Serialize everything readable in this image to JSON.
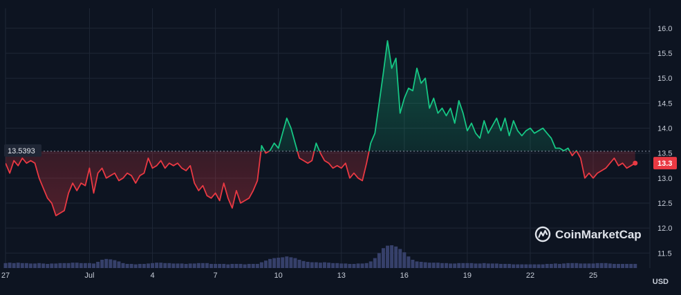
{
  "brand": {
    "name": "CoinMarketCap",
    "icon": "coinmarketcap-logo-icon"
  },
  "currency_label": "USD",
  "reference_price_label": "13.5393",
  "last_price_label": "13.3",
  "colors": {
    "background": "#0d1421",
    "grid": "#1f2736",
    "above_reference": "#16c784",
    "below_reference": "#ea3943",
    "volume": "#36406a",
    "reference_line": "#8a94a6"
  },
  "chart_data": {
    "type": "line",
    "title": "",
    "xlabel": "",
    "ylabel": "USD",
    "ylim": [
      11.2,
      16.4
    ],
    "yticks": [
      11.5,
      12.0,
      12.5,
      13.0,
      13.5,
      14.0,
      14.5,
      15.0,
      15.5,
      16.0
    ],
    "ytick_labels": [
      "11.5",
      "12.0",
      "12.5",
      "13.0",
      "13.5",
      "14.0",
      "14.5",
      "15.0",
      "15.5",
      "16.0"
    ],
    "xlim": [
      0,
      30.7
    ],
    "xticks": [
      0,
      4,
      7,
      10,
      13,
      16,
      19,
      22,
      25,
      28
    ],
    "xtick_labels": [
      "27",
      "Jul",
      "4",
      "7",
      "10",
      "13",
      "16",
      "19",
      "22",
      "25"
    ],
    "reference_value": 13.5393,
    "last_value": 13.3,
    "grid": true,
    "series": [
      {
        "x": [
          0,
          0.2,
          0.4,
          0.6,
          0.8,
          1.0,
          1.2,
          1.4,
          1.6,
          1.8,
          2.0,
          2.2,
          2.4,
          2.6,
          2.8,
          3.0,
          3.2,
          3.4,
          3.6,
          3.8,
          4.0,
          4.2,
          4.4,
          4.6,
          4.8,
          5.0,
          5.2,
          5.4,
          5.6,
          5.8,
          6.0,
          6.2,
          6.4,
          6.6,
          6.8,
          7.0,
          7.2,
          7.4,
          7.6,
          7.8,
          8.0,
          8.2,
          8.4,
          8.6,
          8.8,
          9.0,
          9.2,
          9.4,
          9.6,
          9.8,
          10.0,
          10.2,
          10.4,
          10.6,
          10.8,
          11.0,
          11.2,
          11.4,
          11.6,
          11.8,
          12.0,
          12.2,
          12.4,
          12.6,
          12.8,
          13.0,
          13.2,
          13.4,
          13.6,
          13.8,
          14.0,
          14.2,
          14.4,
          14.6,
          14.8,
          15.0,
          15.2,
          15.4,
          15.6,
          15.8,
          16.0,
          16.2,
          16.4,
          16.6,
          16.8,
          17.0,
          17.2,
          17.4,
          17.6,
          17.8,
          18.0,
          18.2,
          18.4,
          18.6,
          18.8,
          19.0,
          19.2,
          19.4,
          19.6,
          19.8,
          20.0,
          20.2,
          20.4,
          20.6,
          20.8,
          21.0,
          21.2,
          21.4,
          21.6,
          21.8,
          22.0,
          22.2,
          22.4,
          22.6,
          22.8,
          23.0,
          23.2,
          23.4,
          23.6,
          23.8,
          24.0,
          24.2,
          24.4,
          24.6,
          24.8,
          25.0,
          25.2,
          25.4,
          25.6,
          25.8,
          26.0,
          26.2,
          26.4,
          26.6,
          26.8,
          27.0,
          27.2,
          27.4,
          27.6,
          27.8,
          28.0,
          28.2,
          28.4,
          28.6,
          28.8,
          29.0,
          29.2,
          29.4,
          29.6,
          29.8,
          30.0
        ],
        "values": [
          13.3,
          13.1,
          13.35,
          13.25,
          13.4,
          13.3,
          13.35,
          13.3,
          13.0,
          12.8,
          12.6,
          12.5,
          12.25,
          12.3,
          12.35,
          12.7,
          12.9,
          12.75,
          12.9,
          12.85,
          13.2,
          12.7,
          13.1,
          13.2,
          13.0,
          13.05,
          13.1,
          12.95,
          13.0,
          13.1,
          13.05,
          12.9,
          13.05,
          13.1,
          13.4,
          13.2,
          13.25,
          13.35,
          13.2,
          13.3,
          13.25,
          13.3,
          13.2,
          13.15,
          13.25,
          12.9,
          12.75,
          12.85,
          12.65,
          12.6,
          12.7,
          12.55,
          12.9,
          12.6,
          12.4,
          12.75,
          12.5,
          12.55,
          12.6,
          12.75,
          12.95,
          13.65,
          13.5,
          13.55,
          13.7,
          13.6,
          13.9,
          14.2,
          14.0,
          13.7,
          13.4,
          13.35,
          13.3,
          13.35,
          13.7,
          13.5,
          13.35,
          13.3,
          13.2,
          13.25,
          13.2,
          13.3,
          13.0,
          13.1,
          13.0,
          12.95,
          13.3,
          13.7,
          13.9,
          14.5,
          15.1,
          15.75,
          15.2,
          15.4,
          14.3,
          14.6,
          14.8,
          14.75,
          15.2,
          14.9,
          15.0,
          14.4,
          14.6,
          14.3,
          14.4,
          14.25,
          14.4,
          14.1,
          14.55,
          14.3,
          13.95,
          14.1,
          13.9,
          13.8,
          14.15,
          13.9,
          14.05,
          14.2,
          13.95,
          14.2,
          13.85,
          14.15,
          13.95,
          13.85,
          13.95,
          14.0,
          13.9,
          13.95,
          14.0,
          13.9,
          13.8,
          13.6,
          13.6,
          13.55,
          13.6,
          13.45,
          13.55,
          13.4,
          13.0,
          13.1,
          13.0,
          13.1,
          13.15,
          13.2,
          13.3,
          13.4,
          13.25,
          13.3,
          13.2,
          13.25,
          13.3
        ]
      }
    ],
    "volume": [
      0.12,
      0.13,
      0.12,
      0.13,
      0.12,
      0.12,
      0.11,
      0.11,
      0.12,
      0.11,
      0.1,
      0.11,
      0.11,
      0.12,
      0.12,
      0.12,
      0.13,
      0.13,
      0.12,
      0.12,
      0.12,
      0.11,
      0.15,
      0.2,
      0.22,
      0.21,
      0.19,
      0.16,
      0.12,
      0.1,
      0.1,
      0.09,
      0.1,
      0.1,
      0.11,
      0.12,
      0.13,
      0.13,
      0.12,
      0.12,
      0.11,
      0.11,
      0.11,
      0.1,
      0.11,
      0.11,
      0.12,
      0.12,
      0.12,
      0.1,
      0.1,
      0.1,
      0.1,
      0.09,
      0.1,
      0.1,
      0.1,
      0.09,
      0.1,
      0.1,
      0.1,
      0.14,
      0.18,
      0.22,
      0.24,
      0.25,
      0.26,
      0.28,
      0.26,
      0.24,
      0.2,
      0.17,
      0.15,
      0.14,
      0.14,
      0.13,
      0.14,
      0.13,
      0.12,
      0.12,
      0.11,
      0.11,
      0.1,
      0.1,
      0.11,
      0.11,
      0.12,
      0.16,
      0.24,
      0.36,
      0.48,
      0.54,
      0.55,
      0.52,
      0.46,
      0.38,
      0.28,
      0.2,
      0.16,
      0.15,
      0.14,
      0.13,
      0.13,
      0.13,
      0.12,
      0.12,
      0.11,
      0.11,
      0.12,
      0.12,
      0.12,
      0.12,
      0.11,
      0.11,
      0.12,
      0.11,
      0.11,
      0.11,
      0.1,
      0.1,
      0.1,
      0.09,
      0.09,
      0.09,
      0.09,
      0.09,
      0.09,
      0.09,
      0.09,
      0.1,
      0.1,
      0.11,
      0.1,
      0.11,
      0.12,
      0.12,
      0.12,
      0.11,
      0.11,
      0.11,
      0.11,
      0.12,
      0.12,
      0.12,
      0.11,
      0.1,
      0.1,
      0.1,
      0.1,
      0.1,
      0.1
    ]
  }
}
